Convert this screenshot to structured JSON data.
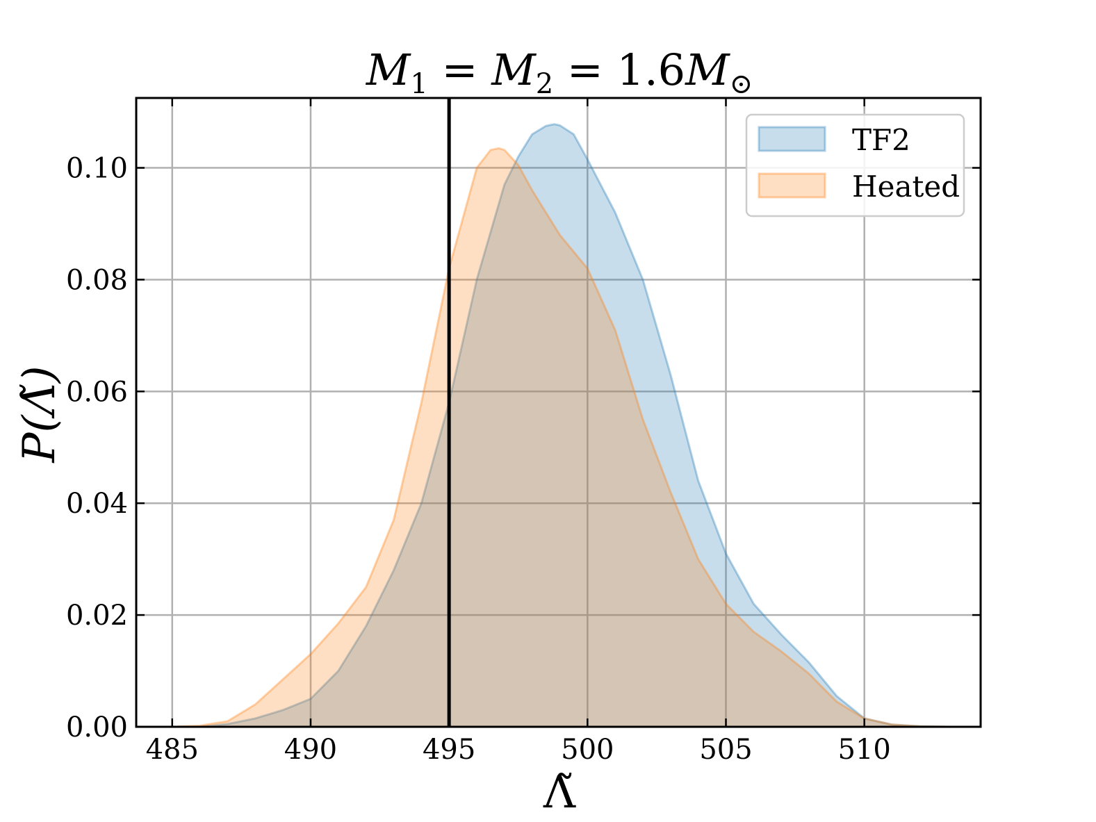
{
  "chart_data": {
    "type": "area",
    "title": {
      "main": "M",
      "sub1": "1",
      "eq1": " = ",
      "m2": "M",
      "sub2": "2",
      "eq2": " = 1.6",
      "m3": "M",
      "sun": "⊙"
    },
    "xlabel": "Λ̃",
    "ylabel": "P(Λ̃)",
    "xlim": [
      483.7,
      514.2
    ],
    "ylim": [
      0.0,
      0.1125
    ],
    "x_ticks": [
      485,
      490,
      495,
      500,
      505,
      510
    ],
    "x_tick_labels": [
      "485",
      "490",
      "495",
      "500",
      "505",
      "510"
    ],
    "y_ticks": [
      0.0,
      0.02,
      0.04,
      0.06,
      0.08,
      0.1
    ],
    "y_tick_labels": [
      "0.00",
      "0.02",
      "0.04",
      "0.06",
      "0.08",
      "0.10"
    ],
    "grid": true,
    "legend_position": "top-right",
    "vline": {
      "x": 495.0,
      "color": "#000000"
    },
    "series": [
      {
        "name": "TF2",
        "color": "#1f77b4",
        "x": [
          486,
          487,
          488,
          489,
          490,
          491,
          492,
          493,
          494,
          495,
          496,
          497,
          497.5,
          498,
          498.5,
          498.8,
          499,
          499.5,
          500,
          501,
          502,
          503,
          504,
          505,
          506,
          507,
          508,
          509,
          510,
          511,
          512,
          513
        ],
        "values": [
          0.0,
          0.0005,
          0.0015,
          0.003,
          0.005,
          0.01,
          0.018,
          0.028,
          0.04,
          0.058,
          0.08,
          0.097,
          0.102,
          0.106,
          0.1075,
          0.1078,
          0.1076,
          0.106,
          0.1015,
          0.092,
          0.08,
          0.063,
          0.044,
          0.031,
          0.022,
          0.0165,
          0.0115,
          0.0055,
          0.0015,
          0.0004,
          0.0001,
          0.0
        ]
      },
      {
        "name": "Heated",
        "color": "#ff7f0e",
        "x": [
          485,
          486,
          487,
          488,
          489,
          490,
          491,
          492,
          493,
          494,
          495,
          496,
          496.5,
          496.8,
          497,
          497.5,
          498,
          499,
          500,
          501,
          502,
          503,
          504,
          505,
          506,
          507,
          508,
          509,
          510,
          511,
          512,
          513
        ],
        "values": [
          0.0,
          0.0002,
          0.001,
          0.004,
          0.0085,
          0.013,
          0.0185,
          0.025,
          0.037,
          0.058,
          0.082,
          0.1,
          0.1032,
          0.1035,
          0.1032,
          0.1005,
          0.096,
          0.088,
          0.082,
          0.071,
          0.055,
          0.042,
          0.03,
          0.022,
          0.017,
          0.0135,
          0.0095,
          0.0045,
          0.0015,
          0.0004,
          0.0001,
          0.0
        ]
      }
    ]
  }
}
